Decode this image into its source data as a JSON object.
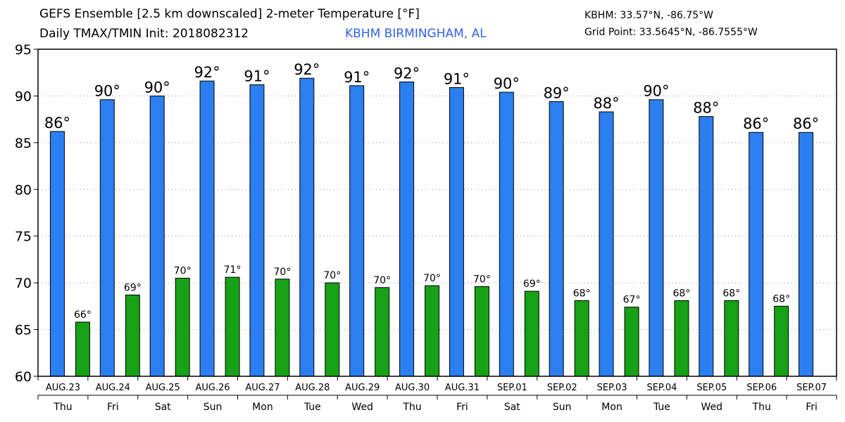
{
  "header": {
    "title_line1": "GEFS Ensemble [2.5 km downscaled] 2-meter Temperature [°F]",
    "title_line2": "Daily TMAX/TMIN Init: 2018082312",
    "location": "KBHM BIRMINGHAM, AL",
    "station_coords": "KBHM: 33.57°N, -86.75°W",
    "grid_point": "Grid Point: 33.5645°N, -86.7555°W"
  },
  "chart_data": {
    "type": "bar",
    "categories": [
      "AUG.23",
      "AUG.24",
      "AUG.25",
      "AUG.26",
      "AUG.27",
      "AUG.28",
      "AUG.29",
      "AUG.30",
      "AUG.31",
      "SEP.01",
      "SEP.02",
      "SEP.03",
      "SEP.04",
      "SEP.05",
      "SEP.06",
      "SEP.07"
    ],
    "weekdays": [
      "Thu",
      "Fri",
      "Sat",
      "Sun",
      "Mon",
      "Tue",
      "Wed",
      "Thu",
      "Fri",
      "Sat",
      "Sun",
      "Mon",
      "Tue",
      "Wed",
      "Thu",
      "Fri"
    ],
    "series": [
      {
        "color": "#2b7ff0",
        "values": [
          86.2,
          89.6,
          90.0,
          91.6,
          91.2,
          91.9,
          91.1,
          91.5,
          90.9,
          90.4,
          89.4,
          88.3,
          89.6,
          87.8,
          86.1,
          86.1
        ],
        "labels": [
          "86°",
          "90°",
          "90°",
          "92°",
          "91°",
          "92°",
          "91°",
          "92°",
          "91°",
          "90°",
          "89°",
          "88°",
          "90°",
          "88°",
          "86°",
          "86°"
        ]
      },
      {
        "color": "#16a116",
        "values": [
          65.8,
          68.7,
          70.5,
          70.6,
          70.4,
          70.0,
          69.5,
          69.7,
          69.6,
          69.1,
          68.1,
          67.4,
          68.1,
          68.1,
          67.5,
          null
        ],
        "labels": [
          "66°",
          "69°",
          "70°",
          "71°",
          "70°",
          "70°",
          "70°",
          "70°",
          "70°",
          "69°",
          "68°",
          "67°",
          "68°",
          "68°",
          "68°",
          ""
        ]
      }
    ],
    "ylim": [
      60,
      95
    ],
    "yticks": [
      60,
      65,
      70,
      75,
      80,
      85,
      90,
      95
    ],
    "grid": true,
    "xlabel": "",
    "ylabel": ""
  }
}
